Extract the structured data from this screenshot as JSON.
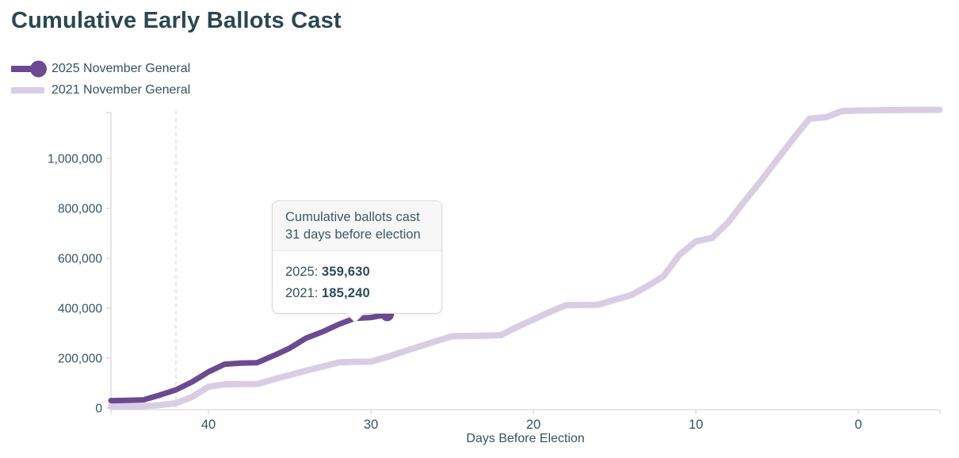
{
  "title": "Cumulative Early Ballots Cast",
  "legend": [
    {
      "label": "2025 November General",
      "color": "#6b4a92",
      "marker": "line-with-dot"
    },
    {
      "label": "2021 November General",
      "color": "#d9cde3",
      "marker": "line"
    }
  ],
  "tooltip": {
    "header_line1": "Cumulative ballots cast",
    "header_line2": "31 days before election",
    "rows": [
      {
        "label": "2025:",
        "value": "359,630"
      },
      {
        "label": "2021:",
        "value": "185,240"
      }
    ]
  },
  "chart_data": {
    "type": "line",
    "title": "Cumulative Early Ballots Cast",
    "xlabel": "Days Before Election",
    "ylabel": "",
    "x_axis_reversed": true,
    "x_domain": [
      46,
      -5
    ],
    "x_ticks": [
      40,
      30,
      20,
      10,
      0
    ],
    "y_domain": [
      0,
      1200000
    ],
    "y_ticks": [
      0,
      200000,
      400000,
      600000,
      800000,
      1000000
    ],
    "y_tick_labels": [
      "0",
      "200,000",
      "400,000",
      "600,000",
      "800,000",
      "1,000,000"
    ],
    "grid": false,
    "legend_position": "top-left",
    "marker_line_day": 42,
    "hover_day": 31,
    "hover_values": {
      "2025": 359630,
      "2021": 185240
    },
    "series": [
      {
        "name": "2021 November General",
        "color": "#d9cde3",
        "width": 8,
        "end_dot": false,
        "points": [
          [
            46,
            6000
          ],
          [
            45,
            7000
          ],
          [
            44,
            8000
          ],
          [
            43,
            12000
          ],
          [
            42,
            19000
          ],
          [
            41,
            45000
          ],
          [
            40,
            85000
          ],
          [
            39,
            95000
          ],
          [
            38,
            96000
          ],
          [
            37,
            96000
          ],
          [
            36,
            115000
          ],
          [
            35,
            132000
          ],
          [
            34,
            150000
          ],
          [
            33,
            166000
          ],
          [
            32,
            183000
          ],
          [
            31,
            185240
          ],
          [
            30,
            186000
          ],
          [
            29,
            205000
          ],
          [
            28,
            226000
          ],
          [
            27,
            247000
          ],
          [
            26,
            268000
          ],
          [
            25,
            288000
          ],
          [
            24,
            289000
          ],
          [
            23,
            290000
          ],
          [
            22,
            292000
          ],
          [
            21,
            325000
          ],
          [
            20,
            355000
          ],
          [
            19,
            385000
          ],
          [
            18,
            412000
          ],
          [
            17,
            413000
          ],
          [
            16,
            414000
          ],
          [
            15,
            434000
          ],
          [
            14,
            452000
          ],
          [
            13,
            488000
          ],
          [
            12,
            528000
          ],
          [
            11,
            615000
          ],
          [
            10,
            668000
          ],
          [
            9,
            682000
          ],
          [
            8,
            745000
          ],
          [
            7,
            830000
          ],
          [
            6,
            910000
          ],
          [
            5,
            995000
          ],
          [
            4,
            1080000
          ],
          [
            3,
            1160000
          ],
          [
            2,
            1165000
          ],
          [
            1,
            1190000
          ],
          [
            0,
            1192000
          ],
          [
            -1,
            1193000
          ],
          [
            -2,
            1194000
          ],
          [
            -3,
            1194500
          ],
          [
            -4,
            1195000
          ],
          [
            -5,
            1195000
          ]
        ]
      },
      {
        "name": "2025 November General",
        "color": "#6b4a92",
        "width": 7,
        "end_dot": true,
        "points": [
          [
            46,
            30000
          ],
          [
            45,
            31000
          ],
          [
            44,
            33000
          ],
          [
            43,
            52000
          ],
          [
            42,
            73000
          ],
          [
            41,
            105000
          ],
          [
            40,
            145000
          ],
          [
            39,
            176000
          ],
          [
            38,
            180000
          ],
          [
            37,
            182000
          ],
          [
            36,
            210000
          ],
          [
            35,
            240000
          ],
          [
            34,
            280000
          ],
          [
            33,
            305000
          ],
          [
            32,
            335000
          ],
          [
            31,
            359630
          ],
          [
            30,
            363000
          ],
          [
            29,
            375000
          ]
        ]
      }
    ]
  },
  "colors": {
    "title_text": "#2b4751",
    "axis_text": "#35535f",
    "axis_line": "#d9d9d9",
    "marker_dashed_line": "#d8d8d8",
    "series_2025": "#6b4a92",
    "series_2021": "#d9cde3",
    "tooltip_header_bg": "#f7f7f8",
    "tooltip_border": "#d9d9d9"
  }
}
